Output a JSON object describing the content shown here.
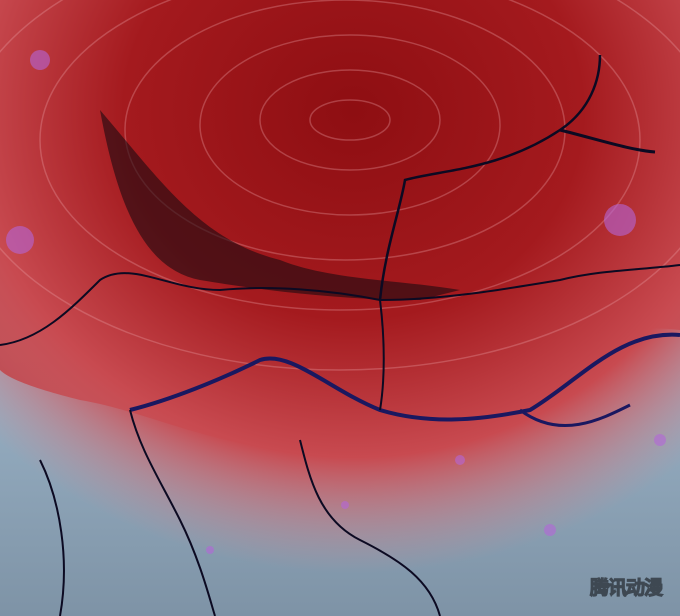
{
  "image": {
    "subject": "storm-swirl-map",
    "colors": {
      "storm_red": "#9c1418",
      "storm_light_red": "#d8606a",
      "ice_blue": "#a9c2d6",
      "border_dark": "#0c0a22",
      "spot_purple": "#b466d8"
    }
  },
  "watermark": {
    "text": "腾讯动漫"
  }
}
